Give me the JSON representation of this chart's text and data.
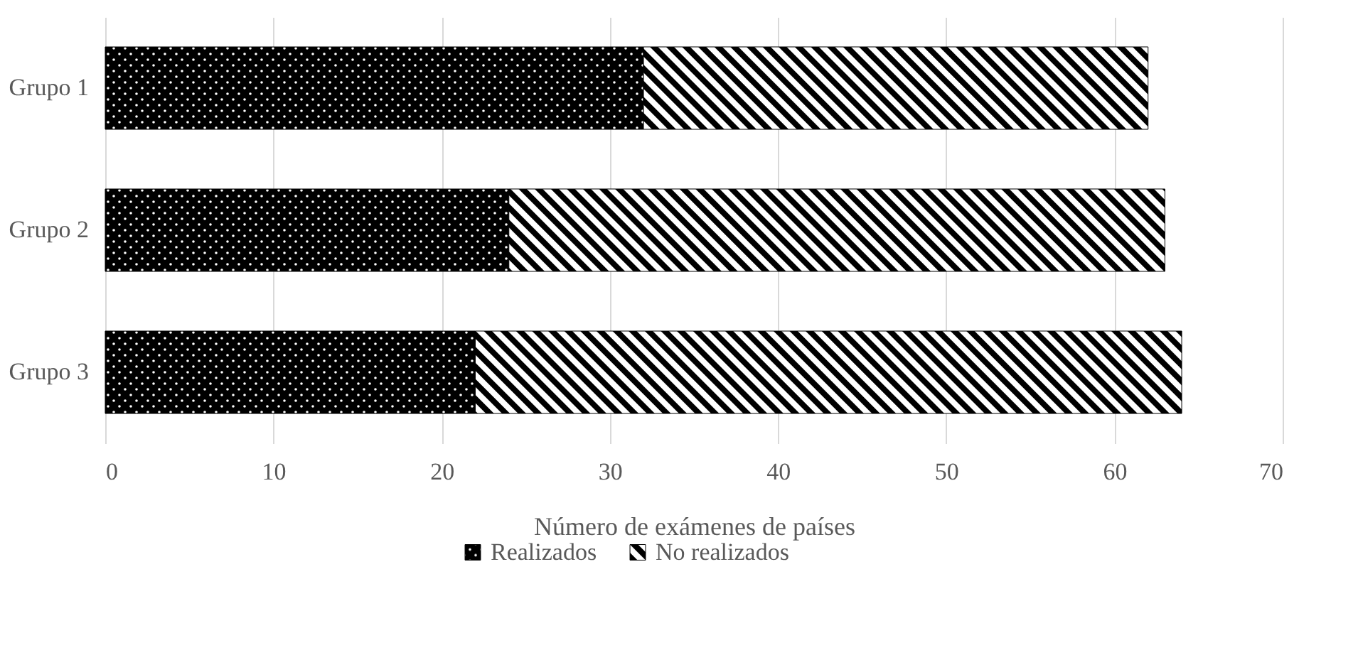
{
  "chart_data": {
    "type": "bar",
    "orientation": "horizontal",
    "stacked": true,
    "xlabel": "Número de exámenes de países",
    "categories": [
      "Grupo 1",
      "Grupo 2",
      "Grupo 3"
    ],
    "series": [
      {
        "name": "Realizados",
        "color": "#000000",
        "values": [
          32,
          24,
          22
        ]
      },
      {
        "name": "No realizados",
        "color": "#000000",
        "values": [
          30,
          39,
          42
        ]
      }
    ],
    "xlim": [
      0,
      70
    ],
    "xticks": [
      0,
      10,
      20,
      30,
      40,
      50,
      60,
      70
    ],
    "grid": "x",
    "legend": "bottom"
  }
}
